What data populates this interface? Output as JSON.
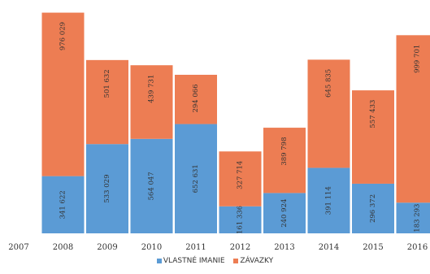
{
  "chart_data": {
    "type": "bar",
    "stacked": true,
    "categories": [
      "2007",
      "2008",
      "2009",
      "2010",
      "2011",
      "2012",
      "2013",
      "2014",
      "2015",
      "2016"
    ],
    "series": [
      {
        "name": "VLASTNÉ IMANIE",
        "color": "#5b9bd5",
        "values": [
          null,
          341622,
          533029,
          564047,
          652631,
          161336,
          240924,
          391114,
          296372,
          183293
        ],
        "labels": [
          "",
          "341 622",
          "533 029",
          "564 047",
          "652 631",
          "161 336",
          "240 924",
          "391 114",
          "296 372",
          "183 293"
        ]
      },
      {
        "name": "ZÁVAZKY",
        "color": "#ed7d53",
        "values": [
          null,
          976029,
          501632,
          439731,
          294066,
          327714,
          389798,
          645835,
          557433,
          999701
        ],
        "labels": [
          "",
          "976 029",
          "501 632",
          "439 731",
          "294 066",
          "327 714",
          "389 798",
          "645 835",
          "557 433",
          "999 701"
        ]
      }
    ],
    "legend_position": "bottom",
    "grid": false
  },
  "legend": {
    "equity": "VLASTNÉ IMANIE",
    "liabilities": "ZÁVAZKY"
  }
}
